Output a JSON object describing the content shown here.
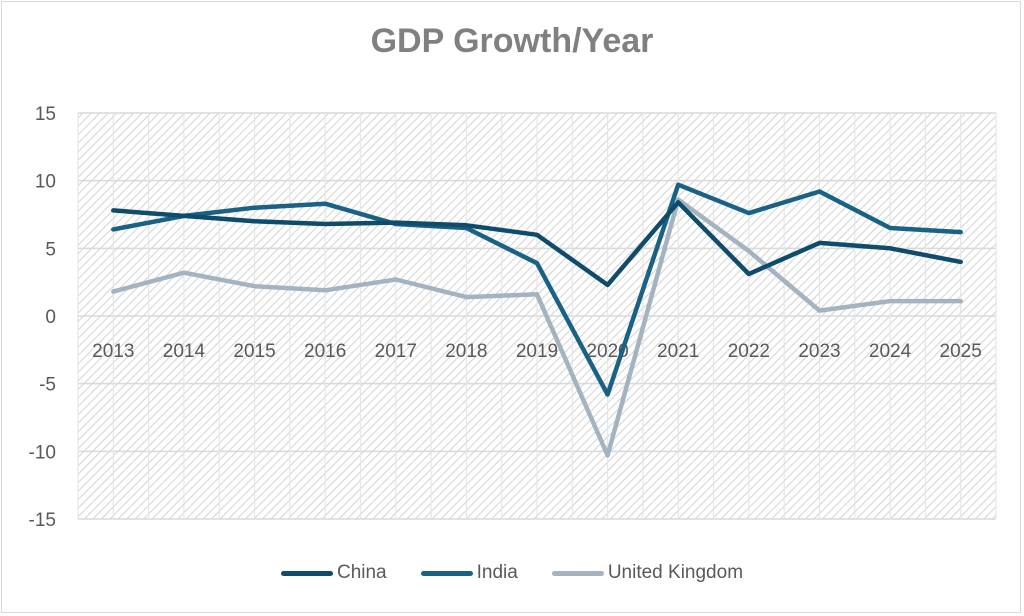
{
  "chart_data": {
    "type": "line",
    "title": "GDP Growth/Year",
    "xlabel": "",
    "ylabel": "",
    "x": [
      "2013",
      "2014",
      "2015",
      "2016",
      "2017",
      "2018",
      "2019",
      "2020",
      "2021",
      "2022",
      "2023",
      "2024",
      "2025"
    ],
    "ylim": [
      -15,
      15
    ],
    "yticks": [
      "15",
      "10",
      "5",
      "0",
      "-5",
      "-10",
      "-15"
    ],
    "ytick_values": [
      15,
      10,
      5,
      0,
      -5,
      -10,
      -15
    ],
    "grid": true,
    "legend_position": "bottom",
    "series": [
      {
        "name": "China",
        "color": "#0f4c6b",
        "values": [
          7.8,
          7.4,
          7.0,
          6.8,
          6.9,
          6.7,
          6.0,
          2.3,
          8.4,
          3.1,
          5.4,
          5.0,
          4.0
        ]
      },
      {
        "name": "India",
        "color": "#1a6285",
        "values": [
          6.4,
          7.4,
          8.0,
          8.3,
          6.8,
          6.5,
          3.9,
          -5.8,
          9.7,
          7.6,
          9.2,
          6.5,
          6.2
        ]
      },
      {
        "name": "United Kingdom",
        "color": "#a4b3c0",
        "values": [
          1.8,
          3.2,
          2.2,
          1.9,
          2.7,
          1.4,
          1.6,
          -10.3,
          8.6,
          4.8,
          0.4,
          1.1,
          1.1
        ]
      }
    ]
  }
}
